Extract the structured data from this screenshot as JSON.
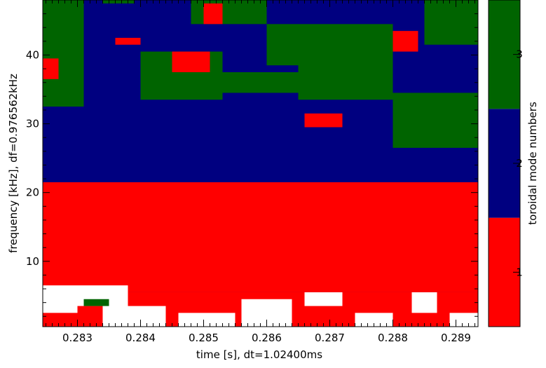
{
  "chart_data": {
    "type": "heatmap",
    "title": "",
    "xlabel": "time [s], dt=1.02400ms",
    "ylabel": "frequency [kHz],  df=0.976562kHz",
    "xlim": [
      0.28245,
      0.28935
    ],
    "ylim": [
      0.5,
      48
    ],
    "x_ticks": [
      "0.283",
      "0.284",
      "0.285",
      "0.286",
      "0.287",
      "0.288",
      "0.289"
    ],
    "x_tick_values": [
      0.283,
      0.284,
      0.285,
      0.286,
      0.287,
      0.288,
      0.289
    ],
    "y_ticks": [
      "10",
      "20",
      "30",
      "40"
    ],
    "y_tick_values": [
      10,
      20,
      30,
      40
    ],
    "grid": false,
    "colorbar": {
      "label": "toroidal mode numbers",
      "levels": [
        {
          "value": "1",
          "color": "#ff0000"
        },
        {
          "value": "2",
          "color": "#000080"
        },
        {
          "value": "3",
          "color": "#006400"
        }
      ]
    },
    "colors": {
      "none": "#ffffff",
      "1": "#ff0000",
      "2": "#000080",
      "3": "#006400"
    },
    "regions": [
      {
        "t": [
          0.28245,
          0.28935
        ],
        "f": [
          0.5,
          48
        ],
        "mode": 2
      },
      {
        "t": [
          0.28245,
          0.28935
        ],
        "f": [
          5.5,
          21.5
        ],
        "mode": 1
      },
      {
        "t": [
          0.28245,
          0.28935
        ],
        "f": [
          0.5,
          5.5
        ],
        "mode": 1
      },
      {
        "t": [
          0.28245,
          0.2831
        ],
        "f": [
          32.5,
          48
        ],
        "mode": 3
      },
      {
        "t": [
          0.2831,
          0.284
        ],
        "f": [
          34.5,
          43.5
        ],
        "mode": 2
      },
      {
        "t": [
          0.284,
          0.2853
        ],
        "f": [
          33.5,
          40.5
        ],
        "mode": 3
      },
      {
        "t": [
          0.2853,
          0.2865
        ],
        "f": [
          34.5,
          37.5
        ],
        "mode": 3
      },
      {
        "t": [
          0.2865,
          0.288
        ],
        "f": [
          33.5,
          41.5
        ],
        "mode": 3
      },
      {
        "t": [
          0.288,
          0.28935
        ],
        "f": [
          26.5,
          34.5
        ],
        "mode": 3
      },
      {
        "t": [
          0.2848,
          0.286
        ],
        "f": [
          44.5,
          48
        ],
        "mode": 3
      },
      {
        "t": [
          0.286,
          0.288
        ],
        "f": [
          38.5,
          44.5
        ],
        "mode": 3
      },
      {
        "t": [
          0.2885,
          0.28935
        ],
        "f": [
          41.5,
          48
        ],
        "mode": 3
      },
      {
        "t": [
          0.28245,
          0.2827
        ],
        "f": [
          36.5,
          39.5
        ],
        "mode": 1
      },
      {
        "t": [
          0.2845,
          0.2851
        ],
        "f": [
          37.5,
          40.5
        ],
        "mode": 1
      },
      {
        "t": [
          0.288,
          0.2884
        ],
        "f": [
          40.5,
          43.5
        ],
        "mode": 1
      },
      {
        "t": [
          0.2866,
          0.2872
        ],
        "f": [
          29.5,
          31.5
        ],
        "mode": 1
      },
      {
        "t": [
          0.285,
          0.2853
        ],
        "f": [
          44.5,
          47.5
        ],
        "mode": 1
      },
      {
        "t": [
          0.2834,
          0.2839
        ],
        "f": [
          47.5,
          48
        ],
        "mode": 3
      },
      {
        "t": [
          0.2836,
          0.284
        ],
        "f": [
          41.5,
          42.5
        ],
        "mode": 1
      },
      {
        "t": [
          0.28245,
          0.2838
        ],
        "f": [
          2.5,
          6.5
        ],
        "mode": 0
      },
      {
        "t": [
          0.283,
          0.2834
        ],
        "f": [
          1.5,
          3.5
        ],
        "mode": 1
      },
      {
        "t": [
          0.2834,
          0.2844
        ],
        "f": [
          0.5,
          3.5
        ],
        "mode": 0
      },
      {
        "t": [
          0.2846,
          0.2855
        ],
        "f": [
          0.5,
          2.5
        ],
        "mode": 0
      },
      {
        "t": [
          0.2856,
          0.2864
        ],
        "f": [
          0.5,
          4.5
        ],
        "mode": 0
      },
      {
        "t": [
          0.2866,
          0.2872
        ],
        "f": [
          3.5,
          5.5
        ],
        "mode": 0
      },
      {
        "t": [
          0.2874,
          0.288
        ],
        "f": [
          0.5,
          2.5
        ],
        "mode": 0
      },
      {
        "t": [
          0.2883,
          0.2887
        ],
        "f": [
          2.5,
          5.5
        ],
        "mode": 0
      },
      {
        "t": [
          0.2889,
          0.28935
        ],
        "f": [
          0.5,
          2.5
        ],
        "mode": 0
      },
      {
        "t": [
          0.2831,
          0.2835
        ],
        "f": [
          3.5,
          4.5
        ],
        "mode": 3
      },
      {
        "t": [
          0.2822,
          0.2823
        ],
        "f": [
          0.5,
          0.6
        ],
        "mode": 2
      }
    ]
  }
}
